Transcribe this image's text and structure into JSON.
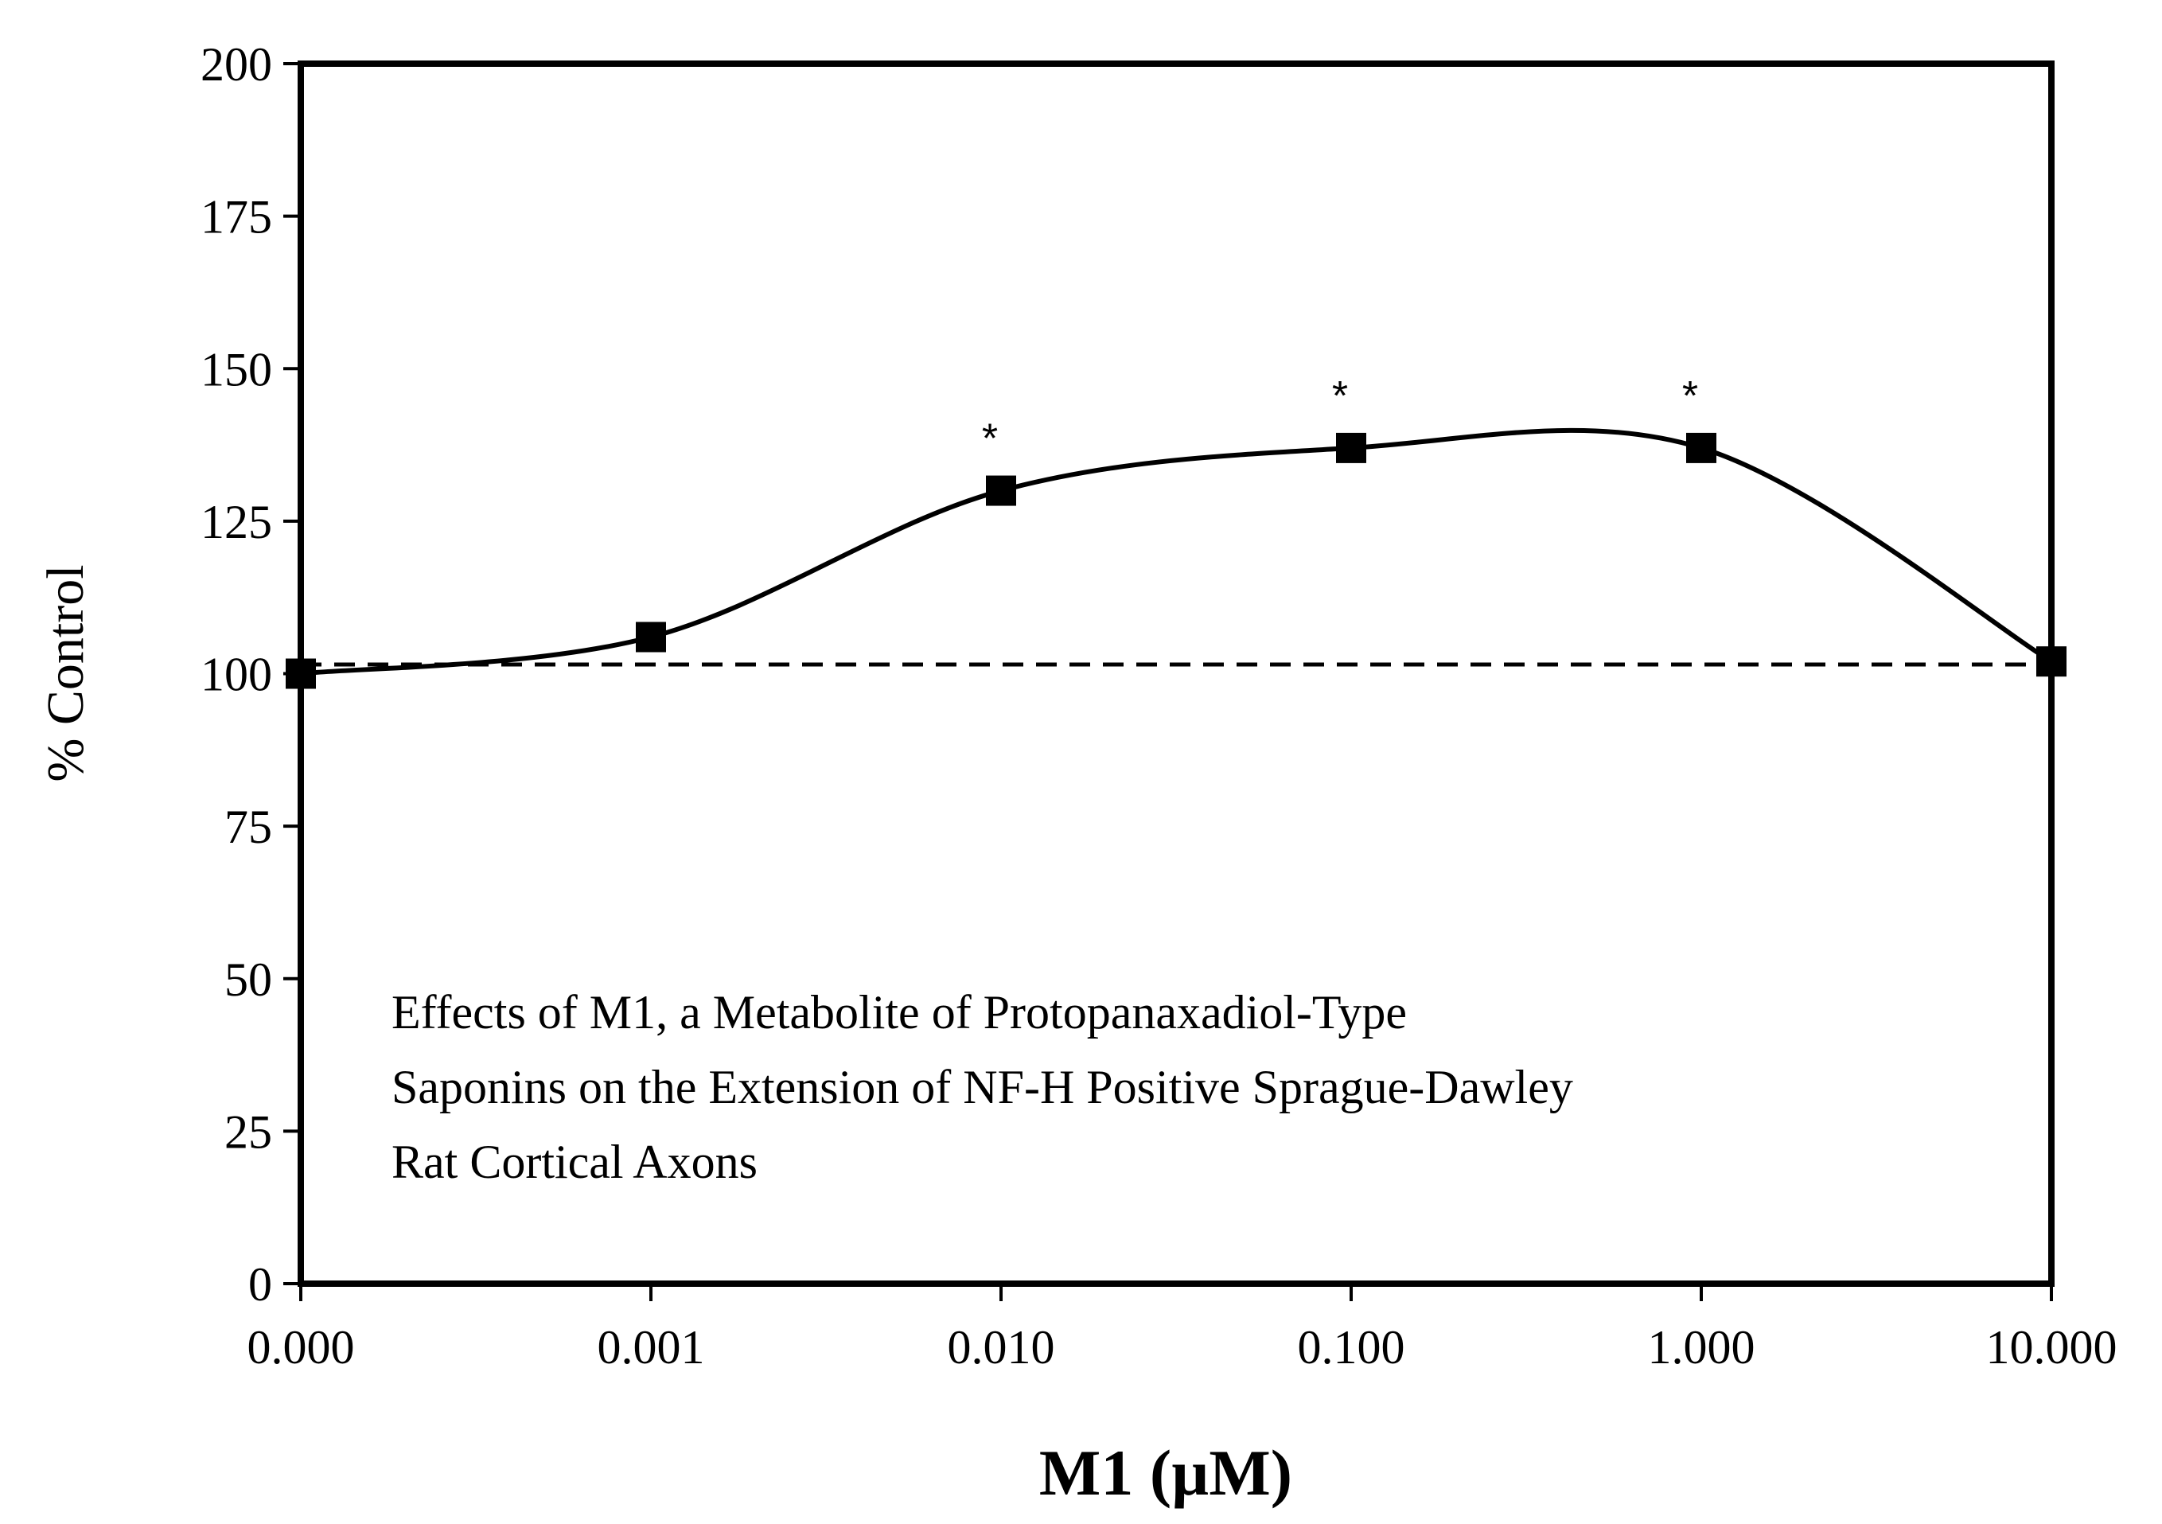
{
  "chart_data": {
    "type": "line",
    "title": "Effects of  M1, a Metabolite of Protopanaxadiol-Type Saponins on the Extension of NF-H Positive Sprague-Dawley Rat Cortical Axons",
    "annotation_lines": [
      "Effects of  M1, a Metabolite of Protopanaxadiol-Type",
      "Saponins on the Extension of NF-H Positive Sprague-Dawley",
      "Rat Cortical Axons"
    ],
    "xlabel": "M1 (µM)",
    "ylabel": "% Control",
    "x_scale": "categorical-log",
    "categories": [
      "0.000",
      "0.001",
      "0.010",
      "0.100",
      "1.000",
      "10.000"
    ],
    "ylim": [
      0,
      200
    ],
    "yticks": [
      "0",
      "25",
      "50",
      "75",
      "100",
      "125",
      "150",
      "175",
      "200"
    ],
    "series": [
      {
        "name": "M1",
        "marker": "square",
        "smooth": true,
        "values": [
          100,
          106,
          130,
          137,
          137,
          102
        ]
      }
    ],
    "significance": [
      "",
      "",
      "*",
      "*",
      "*",
      ""
    ],
    "reference_line": {
      "y": 101.5,
      "style": "dashed"
    },
    "grid": false,
    "colors": {
      "line": "#000000",
      "marker": "#000000",
      "frame": "#000000"
    }
  }
}
